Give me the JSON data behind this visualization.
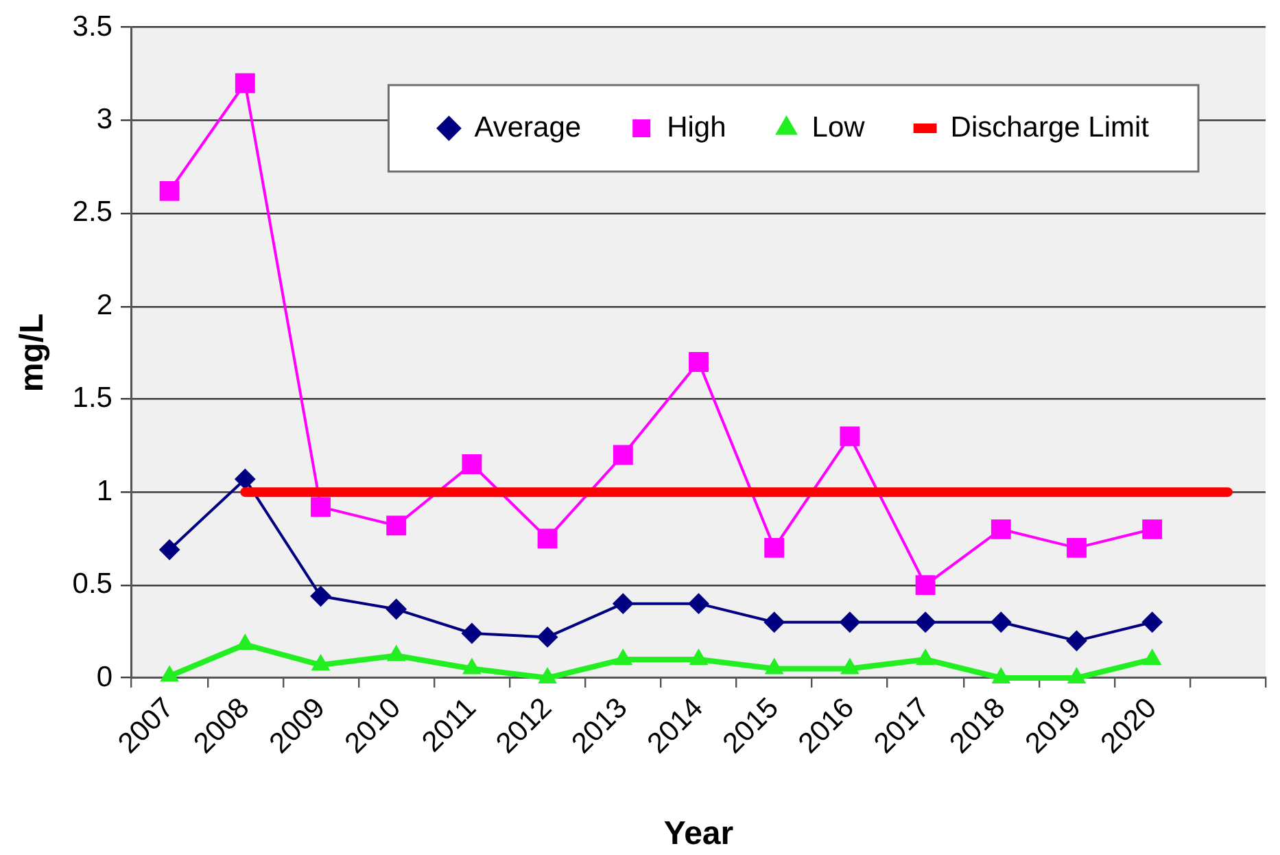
{
  "chart_data": {
    "type": "line",
    "xlabel": "Year",
    "ylabel": "mg/L",
    "categories": [
      "2007",
      "2008",
      "2009",
      "2010",
      "2011",
      "2012",
      "2013",
      "2014",
      "2015",
      "2016",
      "2017",
      "2018",
      "2019",
      "2020",
      null
    ],
    "series": [
      {
        "name": "Average",
        "color": "#000080",
        "marker": "diamond",
        "values": [
          0.69,
          1.07,
          0.44,
          0.37,
          0.24,
          0.22,
          0.4,
          0.4,
          0.3,
          0.3,
          0.3,
          0.3,
          0.2,
          0.3,
          null
        ]
      },
      {
        "name": "High",
        "color": "#ff00ff",
        "marker": "square",
        "values": [
          2.62,
          3.2,
          0.92,
          0.82,
          1.15,
          0.75,
          1.2,
          1.7,
          0.7,
          1.3,
          0.5,
          0.8,
          0.7,
          0.8,
          null
        ]
      },
      {
        "name": "Low",
        "color": "#22ee22",
        "marker": "triangle",
        "values": [
          0.01,
          0.18,
          0.07,
          0.12,
          0.05,
          0,
          0.1,
          0.1,
          0.05,
          0.05,
          0.1,
          0,
          0,
          0.1,
          null
        ]
      },
      {
        "name": "Discharge Limit",
        "color": "#ff0000",
        "marker": "none",
        "values": [
          null,
          1,
          1,
          1,
          1,
          1,
          1,
          1,
          1,
          1,
          1,
          1,
          1,
          1,
          1
        ]
      }
    ],
    "ylim": [
      0,
      3.5
    ],
    "yticks": [
      0,
      0.5,
      1,
      1.5,
      2,
      2.5,
      3,
      3.5
    ],
    "grid": "y",
    "legend": "top right"
  }
}
